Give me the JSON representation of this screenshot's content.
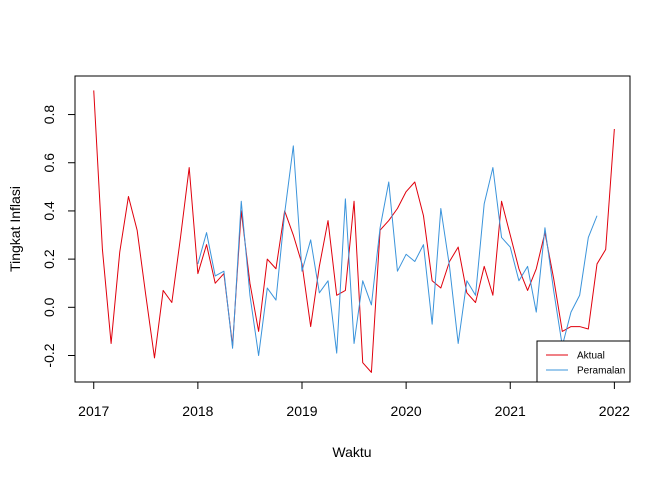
{
  "chart_data": {
    "type": "line",
    "xlabel": "Waktu",
    "ylabel": "Tingkat Inflasi",
    "xlim": [
      2016.82,
      2022.15
    ],
    "ylim": [
      -0.31,
      0.96
    ],
    "x_ticks": [
      2017,
      2018,
      2019,
      2020,
      2021,
      2022
    ],
    "y_ticks": [
      -0.2,
      0.0,
      0.2,
      0.4,
      0.6,
      0.8
    ],
    "y_tick_labels": [
      "-0.2",
      "0.0",
      "0.2",
      "0.4",
      "0.6",
      "0.8"
    ],
    "legend_position": "bottom-right",
    "colors": {
      "Aktual": "#e0000c",
      "Peramalan": "#3b94db",
      "axes": "#000000"
    },
    "series": [
      {
        "name": "Aktual",
        "x_start": 2017,
        "x_step": 0.08333,
        "values": [
          0.9,
          0.24,
          -0.15,
          0.23,
          0.46,
          0.32,
          0.05,
          -0.21,
          0.07,
          0.02,
          0.29,
          0.58,
          0.14,
          0.26,
          0.1,
          0.14,
          -0.16,
          0.4,
          0.1,
          -0.1,
          0.2,
          0.16,
          0.4,
          0.3,
          0.18,
          -0.08,
          0.17,
          0.36,
          0.05,
          0.07,
          0.44,
          -0.23,
          -0.27,
          0.32,
          0.36,
          0.41,
          0.48,
          0.52,
          0.38,
          0.11,
          0.08,
          0.19,
          0.25,
          0.06,
          0.02,
          0.17,
          0.05,
          0.44,
          0.3,
          0.16,
          0.07,
          0.16,
          0.31,
          0.12,
          -0.1,
          -0.08,
          -0.08,
          -0.09,
          0.18,
          0.24,
          0.74
        ]
      },
      {
        "name": "Peramalan",
        "x_start": 2018,
        "x_step": 0.08333,
        "values": [
          0.18,
          0.31,
          0.13,
          0.15,
          -0.17,
          0.44,
          0.05,
          -0.2,
          0.08,
          0.03,
          0.39,
          0.67,
          0.15,
          0.28,
          0.06,
          0.11,
          -0.19,
          0.45,
          -0.15,
          0.11,
          0.01,
          0.33,
          0.52,
          0.15,
          0.22,
          0.19,
          0.26,
          -0.07,
          0.41,
          0.17,
          -0.15,
          0.11,
          0.05,
          0.43,
          0.58,
          0.29,
          0.25,
          0.11,
          0.17,
          -0.02,
          0.33,
          0.07,
          -0.16,
          -0.02,
          0.05,
          0.29,
          0.38
        ]
      }
    ]
  }
}
